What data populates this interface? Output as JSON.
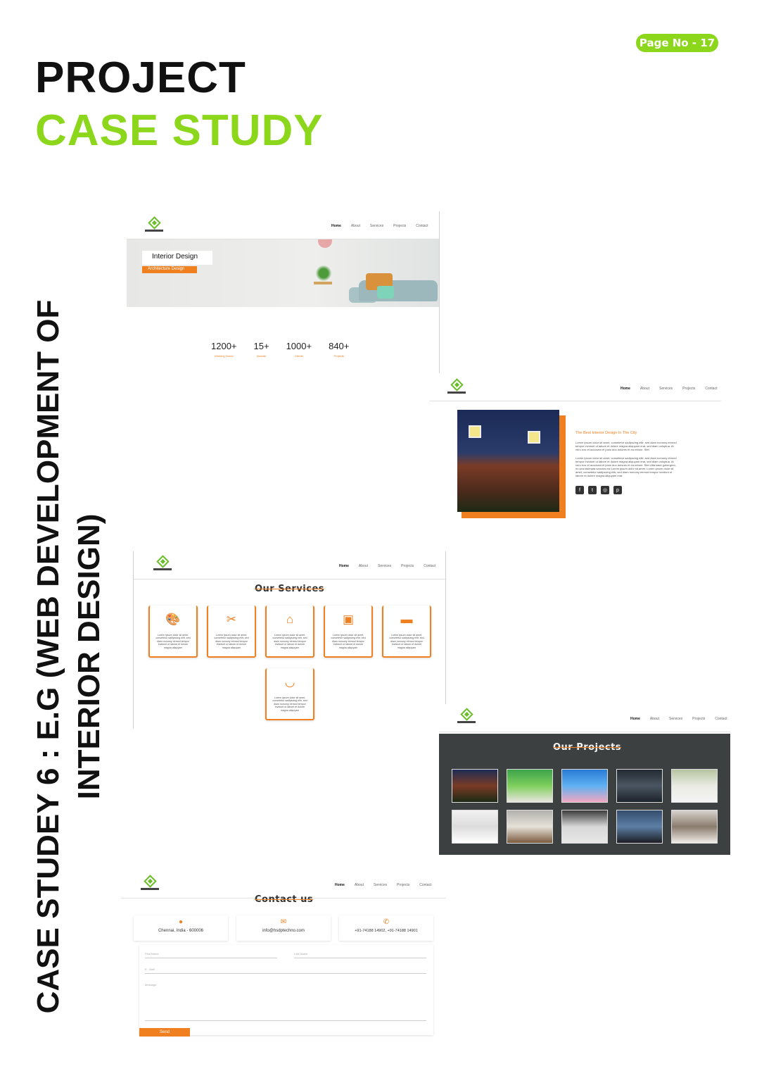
{
  "page_badge": "Page No - 17",
  "title_line1": "PROJECT",
  "title_line2": "CASE STUDY",
  "side_title_line1": "CASE STUDEY 6 : E.G (WEB DEVELOPMENT OF",
  "side_title_line2": "INTERIOR DESIGN)",
  "colors": {
    "accent_green": "#8cd71c",
    "accent_orange": "#f07f1f",
    "dark_panel": "#3d4040"
  },
  "nav": [
    "Home",
    "About",
    "Services",
    "Projects",
    "Contact"
  ],
  "hero": {
    "title": "Interior Design",
    "tag": "Architecture Design"
  },
  "stats": [
    {
      "value": "1200+",
      "label": "Working Hours"
    },
    {
      "value": "15+",
      "label": "Awards"
    },
    {
      "value": "1000+",
      "label": "Clients"
    },
    {
      "value": "840+",
      "label": "Projects"
    }
  ],
  "about": {
    "title": "The Best Interior Design In The City",
    "para1": "Lorem ipsum dolor sit amet, consetetur sadipscing elitr, sed diam nonumy eirmod tempor invidunt ut labore et dolore magna aliquyam erat, sed diam voluptua. At vero eos et accusam et justo duo dolores et ea rebum. Stet",
    "para2": "Lorem ipsum dolor sit amet, consetetur sadipscing elitr, sed diam nonumy eirmod tempor invidunt ut labore et dolore magna aliquyam erat, sed diam voluptua. At vero eos et accusam et justo duo dolores et ea rebum. Stet clita kasd gubergren, no sea takimata sanctus est Lorem ipsum dolor sit amet. Lorem ipsum dolor sit amet, consetetur sadipscing elitr, sed diam nonumy eirmod tempor invidunt ut labore et dolore magna aliquyam erat.",
    "social_icons": [
      "facebook-icon",
      "twitter-icon",
      "instagram-icon",
      "pinterest-icon"
    ]
  },
  "services": {
    "title": "Our Services",
    "text": "Lorem ipsum dolor sit amet, consetetur sadipscing elitr, sed diam nonumy eirmod tempor invidunt ut labore et dolore magna aliquyam",
    "icons": [
      "palette-icon",
      "tools-icon",
      "home-icon",
      "sofa-icon",
      "bed-icon",
      "bathtub-icon"
    ]
  },
  "projects": {
    "title": "Our Projects"
  },
  "contact": {
    "title": "Contact us",
    "address": "Chennai, India - 600006",
    "email": "info@hsdptechno.com",
    "phone": "+91-74188 14902, +91-74188 14901",
    "first_name": "First Name",
    "last_name": "Last Name",
    "email_field": "E - Mail",
    "message": "Message",
    "send": "Send"
  }
}
